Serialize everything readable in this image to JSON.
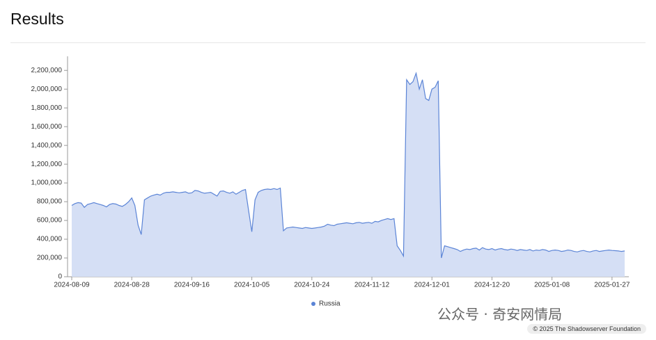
{
  "title": "Results",
  "watermark": "公众号 · 奇安网情局",
  "credit": "© 2025 The Shadowserver Foundation",
  "chart_data": {
    "type": "area",
    "x": [
      "2024-08-09",
      "2024-08-10",
      "2024-08-11",
      "2024-08-12",
      "2024-08-13",
      "2024-08-14",
      "2024-08-15",
      "2024-08-16",
      "2024-08-17",
      "2024-08-18",
      "2024-08-19",
      "2024-08-20",
      "2024-08-21",
      "2024-08-22",
      "2024-08-23",
      "2024-08-24",
      "2024-08-25",
      "2024-08-26",
      "2024-08-27",
      "2024-08-28",
      "2024-08-29",
      "2024-08-30",
      "2024-08-31",
      "2024-09-01",
      "2024-09-02",
      "2024-09-03",
      "2024-09-04",
      "2024-09-05",
      "2024-09-06",
      "2024-09-07",
      "2024-09-08",
      "2024-09-09",
      "2024-09-10",
      "2024-09-11",
      "2024-09-12",
      "2024-09-13",
      "2024-09-14",
      "2024-09-15",
      "2024-09-16",
      "2024-09-17",
      "2024-09-18",
      "2024-09-19",
      "2024-09-20",
      "2024-09-21",
      "2024-09-22",
      "2024-09-23",
      "2024-09-24",
      "2024-09-25",
      "2024-09-26",
      "2024-09-27",
      "2024-09-28",
      "2024-09-29",
      "2024-09-30",
      "2024-10-01",
      "2024-10-02",
      "2024-10-03",
      "2024-10-04",
      "2024-10-05",
      "2024-10-06",
      "2024-10-07",
      "2024-10-08",
      "2024-10-09",
      "2024-10-10",
      "2024-10-11",
      "2024-10-12",
      "2024-10-13",
      "2024-10-14",
      "2024-10-15",
      "2024-10-16",
      "2024-10-17",
      "2024-10-18",
      "2024-10-19",
      "2024-10-20",
      "2024-10-21",
      "2024-10-22",
      "2024-10-23",
      "2024-10-24",
      "2024-10-25",
      "2024-10-26",
      "2024-10-27",
      "2024-10-28",
      "2024-10-29",
      "2024-10-30",
      "2024-10-31",
      "2024-11-01",
      "2024-11-02",
      "2024-11-03",
      "2024-11-04",
      "2024-11-05",
      "2024-11-06",
      "2024-11-07",
      "2024-11-08",
      "2024-11-09",
      "2024-11-10",
      "2024-11-11",
      "2024-11-12",
      "2024-11-13",
      "2024-11-14",
      "2024-11-15",
      "2024-11-16",
      "2024-11-17",
      "2024-11-18",
      "2024-11-19",
      "2024-11-20",
      "2024-11-21",
      "2024-11-22",
      "2024-11-23",
      "2024-11-24",
      "2024-11-25",
      "2024-11-26",
      "2024-11-27",
      "2024-11-28",
      "2024-11-29",
      "2024-11-30",
      "2024-12-01",
      "2024-12-02",
      "2024-12-03",
      "2024-12-04",
      "2024-12-05",
      "2024-12-06",
      "2024-12-07",
      "2024-12-08",
      "2024-12-09",
      "2024-12-10",
      "2024-12-11",
      "2024-12-12",
      "2024-12-13",
      "2024-12-14",
      "2024-12-15",
      "2024-12-16",
      "2024-12-17",
      "2024-12-18",
      "2024-12-19",
      "2024-12-20",
      "2024-12-21",
      "2024-12-22",
      "2024-12-23",
      "2024-12-24",
      "2024-12-25",
      "2024-12-26",
      "2024-12-27",
      "2024-12-28",
      "2024-12-29",
      "2024-12-30",
      "2024-12-31",
      "2025-01-01",
      "2025-01-02",
      "2025-01-03",
      "2025-01-04",
      "2025-01-05",
      "2025-01-06",
      "2025-01-07",
      "2025-01-08",
      "2025-01-09",
      "2025-01-10",
      "2025-01-11",
      "2025-01-12",
      "2025-01-13",
      "2025-01-14",
      "2025-01-15",
      "2025-01-16",
      "2025-01-17",
      "2025-01-18",
      "2025-01-19",
      "2025-01-20",
      "2025-01-21",
      "2025-01-22",
      "2025-01-23",
      "2025-01-24",
      "2025-01-25",
      "2025-01-26",
      "2025-01-27",
      "2025-01-28",
      "2025-01-29",
      "2025-01-30",
      "2025-01-31"
    ],
    "series": [
      {
        "name": "Russia",
        "color": "#5b84d6",
        "fill": "#d5dff5",
        "values": [
          760000,
          780000,
          790000,
          785000,
          740000,
          770000,
          780000,
          790000,
          780000,
          770000,
          760000,
          745000,
          770000,
          780000,
          775000,
          760000,
          750000,
          770000,
          800000,
          840000,
          760000,
          550000,
          450000,
          820000,
          840000,
          860000,
          870000,
          880000,
          870000,
          890000,
          900000,
          900000,
          905000,
          900000,
          895000,
          900000,
          905000,
          890000,
          895000,
          920000,
          915000,
          900000,
          890000,
          895000,
          900000,
          880000,
          860000,
          910000,
          915000,
          900000,
          890000,
          905000,
          880000,
          900000,
          920000,
          930000,
          700000,
          480000,
          820000,
          900000,
          920000,
          930000,
          935000,
          930000,
          940000,
          930000,
          945000,
          490000,
          520000,
          525000,
          530000,
          525000,
          520000,
          515000,
          525000,
          520000,
          515000,
          520000,
          525000,
          530000,
          540000,
          560000,
          550000,
          545000,
          560000,
          565000,
          570000,
          575000,
          570000,
          565000,
          575000,
          580000,
          570000,
          575000,
          580000,
          570000,
          590000,
          585000,
          600000,
          610000,
          620000,
          610000,
          620000,
          330000,
          280000,
          220000,
          2100000,
          2050000,
          2080000,
          2170000,
          2000000,
          2100000,
          1900000,
          1880000,
          2000000,
          2020000,
          2090000,
          200000,
          330000,
          320000,
          310000,
          300000,
          290000,
          270000,
          285000,
          295000,
          290000,
          300000,
          305000,
          285000,
          310000,
          295000,
          290000,
          300000,
          285000,
          295000,
          300000,
          290000,
          285000,
          295000,
          290000,
          280000,
          290000,
          285000,
          280000,
          290000,
          275000,
          285000,
          280000,
          290000,
          285000,
          270000,
          280000,
          285000,
          280000,
          270000,
          275000,
          285000,
          280000,
          270000,
          265000,
          275000,
          280000,
          270000,
          265000,
          275000,
          280000,
          270000,
          275000,
          280000,
          285000,
          280000,
          278000,
          275000,
          270000,
          275000
        ]
      }
    ],
    "xlim": [
      "2024-08-09",
      "2025-01-31"
    ],
    "xticks": [
      "2024-08-09",
      "2024-08-28",
      "2024-09-16",
      "2024-10-05",
      "2024-10-24",
      "2024-11-12",
      "2024-12-01",
      "2024-12-20",
      "2025-01-08",
      "2025-01-27"
    ],
    "ylim": [
      0,
      2350000
    ],
    "yticks": [
      0,
      {
        "value": 200000,
        "label": "200,000"
      },
      {
        "value": 400000,
        "label": "400,000"
      },
      {
        "value": 600000,
        "label": "600,000"
      },
      {
        "value": 800000,
        "label": "800,000"
      },
      {
        "value": 1000000,
        "label": "1,000,000"
      },
      {
        "value": 1200000,
        "label": "1,200,000"
      },
      {
        "value": 1400000,
        "label": "1,400,000"
      },
      {
        "value": 1600000,
        "label": "1,600,000"
      },
      {
        "value": 1800000,
        "label": "1,800,000"
      },
      {
        "value": 2000000,
        "label": "2,000,000"
      },
      {
        "value": 2200000,
        "label": "2,200,000"
      }
    ],
    "legend": "bottom"
  }
}
